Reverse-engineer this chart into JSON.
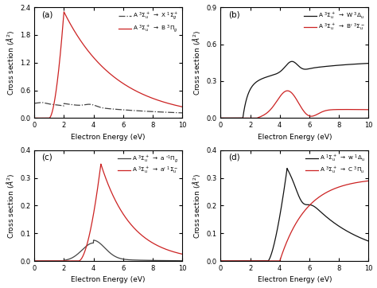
{
  "panel_a": {
    "ylim": [
      0,
      2.4
    ],
    "yticks": [
      0.0,
      0.6,
      1.2,
      1.8,
      2.4
    ],
    "xlim": [
      0,
      10
    ],
    "xticks": [
      0,
      2,
      4,
      6,
      8,
      10
    ],
    "legend1": "A $^3\\Sigma_u^+$ $\\rightarrow$ X $^1\\Sigma_g^+$",
    "legend2": "A $^3\\Sigma_u^+$ $\\rightarrow$ B $^3\\Pi_g$",
    "line1_color": "#444444",
    "line2_color": "#cc2222"
  },
  "panel_b": {
    "ylim": [
      0,
      0.9
    ],
    "yticks": [
      0.0,
      0.3,
      0.6,
      0.9
    ],
    "xlim": [
      0,
      10
    ],
    "xticks": [
      0,
      2,
      4,
      6,
      8,
      10
    ],
    "legend1": "A $^3\\Sigma_u^+$ $\\rightarrow$ W $^3\\Delta_u$",
    "legend2": "A $^3\\Sigma_u^+$ $\\rightarrow$ B$'$ $^3\\Sigma_u^-$",
    "line1_color": "#111111",
    "line2_color": "#cc2222"
  },
  "panel_c": {
    "ylim": [
      0,
      0.4
    ],
    "yticks": [
      0.0,
      0.1,
      0.2,
      0.3,
      0.4
    ],
    "xlim": [
      0,
      10
    ],
    "xticks": [
      0,
      2,
      4,
      6,
      8,
      10
    ],
    "legend1": "A $^3\\Sigma_u^+$ $\\rightarrow$ a $'^1\\Pi_g$",
    "legend2": "A $^3\\Sigma_u^+$ $\\rightarrow$ a$'$ $^1\\Sigma_u^-$",
    "line1_color": "#444444",
    "line2_color": "#cc2222"
  },
  "panel_d": {
    "ylim": [
      0,
      0.4
    ],
    "yticks": [
      0.0,
      0.1,
      0.2,
      0.3,
      0.4
    ],
    "xlim": [
      0,
      10
    ],
    "xticks": [
      0,
      2,
      4,
      6,
      8,
      10
    ],
    "legend1": "A $^1\\Sigma_u^+$ $\\rightarrow$ w $^1\\Delta_u$",
    "legend2": "A $^3\\Sigma_u^+$ $\\rightarrow$ C $^3\\Pi_u$",
    "line1_color": "#111111",
    "line2_color": "#cc2222"
  },
  "ylabel": "Cross section ($\\AA^2$)",
  "xlabel": "Electron Energy (eV)"
}
